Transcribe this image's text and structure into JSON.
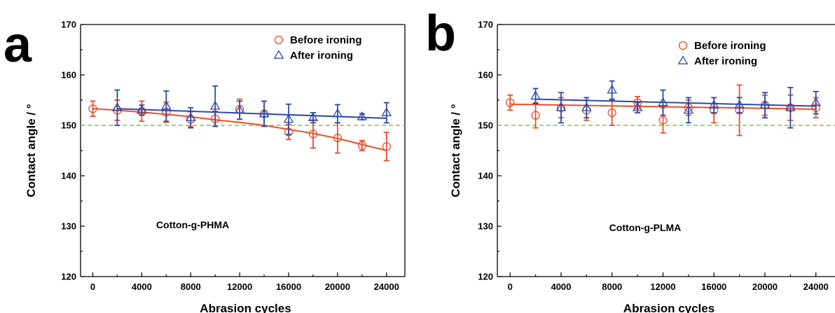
{
  "chart_data": [
    {
      "type": "scatter",
      "panel_label": "a",
      "annotation": "Cotton-g-PHMA",
      "xlabel": "Abrasion cycles",
      "ylabel": "Contact angle / °",
      "xlim": [
        -1000,
        25500
      ],
      "ylim": [
        120,
        170
      ],
      "xticks": [
        0,
        4000,
        8000,
        12000,
        16000,
        20000,
        24000
      ],
      "yticks": [
        120,
        130,
        140,
        150,
        160,
        170
      ],
      "reference_line": {
        "y": 150,
        "color": "#7ac943",
        "style": "dashed"
      },
      "legend": "top-right",
      "series": [
        {
          "name": "Before ironing",
          "marker": "circle",
          "color": "#e8502a",
          "x": [
            0,
            2000,
            4000,
            6000,
            8000,
            10000,
            12000,
            14000,
            16000,
            18000,
            20000,
            22000,
            24000
          ],
          "y": [
            153.3,
            153.0,
            152.8,
            152.6,
            151.2,
            151.3,
            153.2,
            152.3,
            148.7,
            148.3,
            147.5,
            146.0,
            145.8
          ],
          "err": [
            1.5,
            2.0,
            2.0,
            2.0,
            1.5,
            1.5,
            2.0,
            2.5,
            1.5,
            2.8,
            3.0,
            1.0,
            2.8
          ],
          "fit": [
            [
              0,
              153.3
            ],
            [
              2000,
              153.0
            ],
            [
              4000,
              152.6
            ],
            [
              6000,
              152.2
            ],
            [
              8000,
              151.7
            ],
            [
              10000,
              151.1
            ],
            [
              12000,
              150.6
            ],
            [
              14000,
              150.0
            ],
            [
              16000,
              149.2
            ],
            [
              18000,
              148.4
            ],
            [
              20000,
              147.4
            ],
            [
              22000,
              146.2
            ],
            [
              24000,
              145.0
            ]
          ]
        },
        {
          "name": "After ironing",
          "marker": "triangle",
          "color": "#2e4aa8",
          "x": [
            2000,
            4000,
            6000,
            8000,
            10000,
            12000,
            14000,
            16000,
            18000,
            20000,
            22000,
            24000
          ],
          "y": [
            153.5,
            153.0,
            153.8,
            151.5,
            153.8,
            153.0,
            152.3,
            151.2,
            151.5,
            152.3,
            151.7,
            152.5
          ],
          "err": [
            3.5,
            1.0,
            3.0,
            2.0,
            4.0,
            1.8,
            2.5,
            3.0,
            1.0,
            1.8,
            0.6,
            2.0
          ],
          "fit": [
            [
              2000,
              153.3
            ],
            [
              24000,
              151.4
            ]
          ]
        }
      ]
    },
    {
      "type": "scatter",
      "panel_label": "b",
      "annotation": "Cotton-g-PLMA",
      "xlabel": "Abrasion cycles",
      "ylabel": "Contact angle / °",
      "xlim": [
        -1000,
        25500
      ],
      "ylim": [
        120,
        170
      ],
      "xticks": [
        0,
        4000,
        8000,
        12000,
        16000,
        20000,
        24000
      ],
      "yticks": [
        120,
        130,
        140,
        150,
        160,
        170
      ],
      "reference_line": {
        "y": 150,
        "color": "#7ac943",
        "style": "dashed"
      },
      "legend": "top-right",
      "series": [
        {
          "name": "Before ironing",
          "marker": "circle",
          "color": "#e8502a",
          "x": [
            0,
            2000,
            4000,
            6000,
            8000,
            10000,
            12000,
            14000,
            16000,
            18000,
            20000,
            22000,
            24000
          ],
          "y": [
            154.5,
            152.0,
            153.5,
            153.0,
            152.5,
            154.5,
            151.0,
            153.5,
            153.0,
            153.0,
            154.0,
            153.5,
            153.5
          ],
          "err": [
            1.5,
            2.5,
            2.0,
            2.0,
            2.5,
            1.2,
            2.5,
            1.5,
            2.5,
            5.0,
            2.0,
            2.5,
            2.0
          ],
          "fit": [
            [
              0,
              154.2
            ],
            [
              24000,
              153.2
            ]
          ]
        },
        {
          "name": "After ironing",
          "marker": "triangle",
          "color": "#2e4aa8",
          "x": [
            2000,
            4000,
            6000,
            8000,
            10000,
            12000,
            14000,
            16000,
            18000,
            20000,
            22000,
            24000
          ],
          "y": [
            155.8,
            153.5,
            153.5,
            157.0,
            153.5,
            154.5,
            153.0,
            154.0,
            154.0,
            154.0,
            153.5,
            154.5
          ],
          "err": [
            1.5,
            3.0,
            2.0,
            1.8,
            1.0,
            2.5,
            2.5,
            1.5,
            1.5,
            2.5,
            4.0,
            2.2
          ],
          "fit": [
            [
              2000,
              155.2
            ],
            [
              24000,
              153.8
            ]
          ]
        }
      ]
    }
  ]
}
